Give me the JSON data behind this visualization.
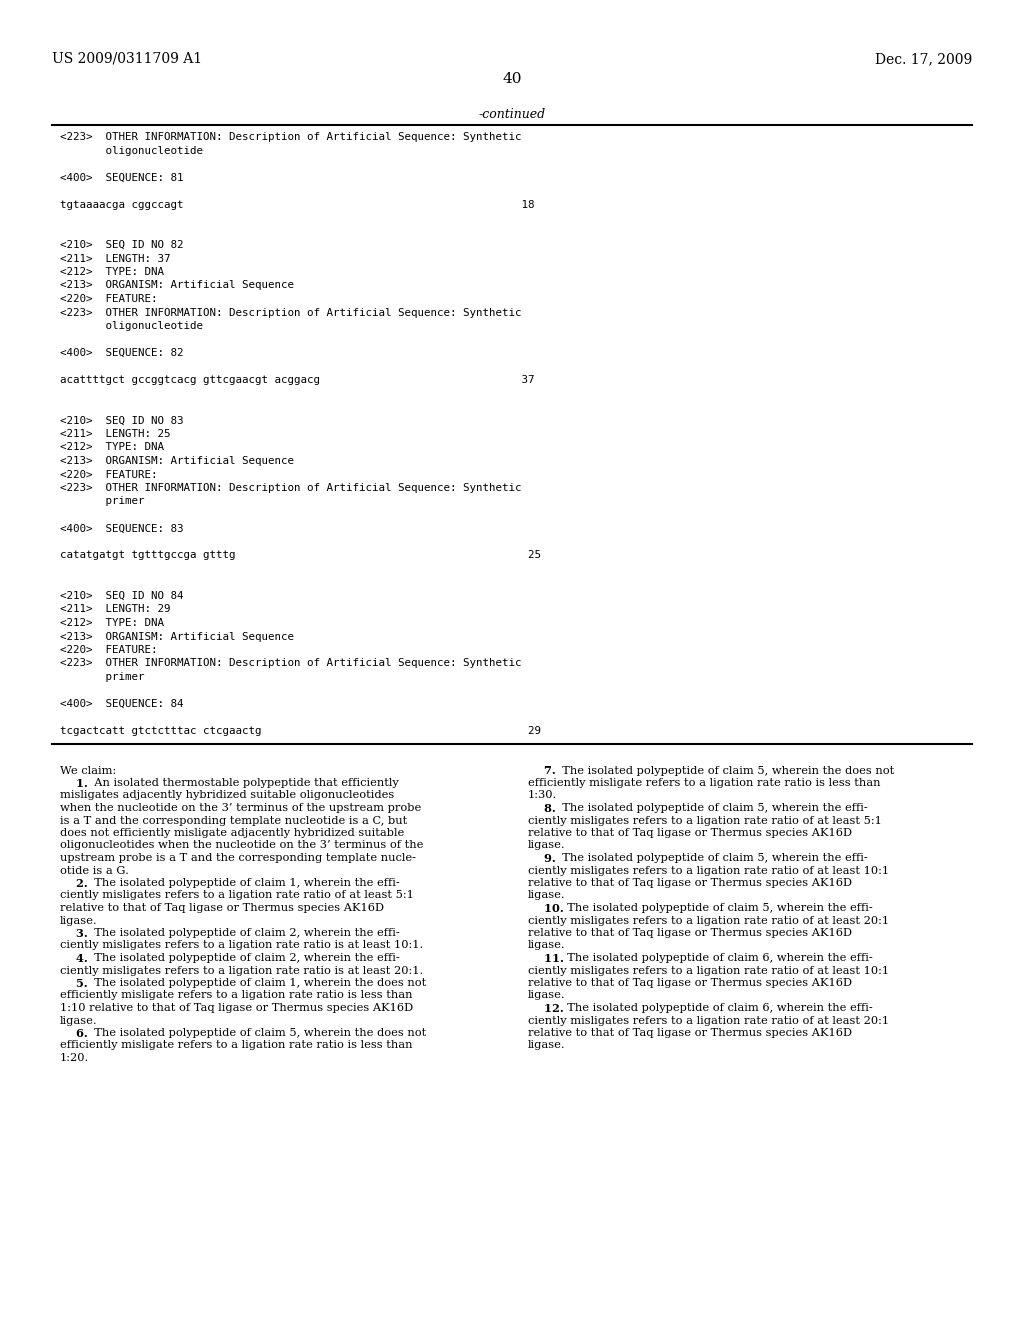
{
  "background_color": "#ffffff",
  "header_left": "US 2009/0311709 A1",
  "header_right": "Dec. 17, 2009",
  "page_number": "40",
  "continued_label": "-continued",
  "seq_block": [
    "<223>  OTHER INFORMATION: Description of Artificial Sequence: Synthetic",
    "       oligonucleotide",
    "",
    "<400>  SEQUENCE: 81",
    "",
    "tgtaaaacga cggccagt                                                    18",
    "",
    "",
    "<210>  SEQ ID NO 82",
    "<211>  LENGTH: 37",
    "<212>  TYPE: DNA",
    "<213>  ORGANISM: Artificial Sequence",
    "<220>  FEATURE:",
    "<223>  OTHER INFORMATION: Description of Artificial Sequence: Synthetic",
    "       oligonucleotide",
    "",
    "<400>  SEQUENCE: 82",
    "",
    "acattttgct gccggtcacg gttcgaacgt acggacg                               37",
    "",
    "",
    "<210>  SEQ ID NO 83",
    "<211>  LENGTH: 25",
    "<212>  TYPE: DNA",
    "<213>  ORGANISM: Artificial Sequence",
    "<220>  FEATURE:",
    "<223>  OTHER INFORMATION: Description of Artificial Sequence: Synthetic",
    "       primer",
    "",
    "<400>  SEQUENCE: 83",
    "",
    "catatgatgt tgtttgccga gtttg                                             25",
    "",
    "",
    "<210>  SEQ ID NO 84",
    "<211>  LENGTH: 29",
    "<212>  TYPE: DNA",
    "<213>  ORGANISM: Artificial Sequence",
    "<220>  FEATURE:",
    "<223>  OTHER INFORMATION: Description of Artificial Sequence: Synthetic",
    "       primer",
    "",
    "<400>  SEQUENCE: 84",
    "",
    "tcgactcatt gtctctttac ctcgaactg                                         29"
  ],
  "claims_left": [
    {
      "text": "We claim:",
      "indent": false,
      "bold_prefix": ""
    },
    {
      "text": "    1.  An isolated thermostable polypeptide that efficiently",
      "indent": false,
      "bold_prefix": "1"
    },
    {
      "text": "misligates adjacently hybridized suitable oligonucleotides",
      "indent": false,
      "bold_prefix": ""
    },
    {
      "text": "when the nucleotide on the 3’ terminus of the upstream probe",
      "indent": false,
      "bold_prefix": ""
    },
    {
      "text": "is a T and the corresponding template nucleotide is a C, but",
      "indent": false,
      "bold_prefix": ""
    },
    {
      "text": "does not efficiently misligate adjacently hybridized suitable",
      "indent": false,
      "bold_prefix": ""
    },
    {
      "text": "oligonucleotides when the nucleotide on the 3’ terminus of the",
      "indent": false,
      "bold_prefix": ""
    },
    {
      "text": "upstream probe is a T and the corresponding template nucle-",
      "indent": false,
      "bold_prefix": ""
    },
    {
      "text": "otide is a G.",
      "indent": false,
      "bold_prefix": ""
    },
    {
      "text": "    2.  The isolated polypeptide of claim 1, wherein the effi-",
      "indent": false,
      "bold_prefix": "2"
    },
    {
      "text": "ciently misligates refers to a ligation rate ratio of at least 5:1",
      "indent": false,
      "bold_prefix": ""
    },
    {
      "text": "relative to that of Taq ligase or Thermus species AK16D",
      "indent": false,
      "bold_prefix": ""
    },
    {
      "text": "ligase.",
      "indent": false,
      "bold_prefix": ""
    },
    {
      "text": "    3.  The isolated polypeptide of claim 2, wherein the effi-",
      "indent": false,
      "bold_prefix": "3"
    },
    {
      "text": "ciently misligates refers to a ligation rate ratio is at least 10:1.",
      "indent": false,
      "bold_prefix": ""
    },
    {
      "text": "    4.  The isolated polypeptide of claim 2, wherein the effi-",
      "indent": false,
      "bold_prefix": "4"
    },
    {
      "text": "ciently misligates refers to a ligation rate ratio is at least 20:1.",
      "indent": false,
      "bold_prefix": ""
    },
    {
      "text": "    5.  The isolated polypeptide of claim 1, wherein the does not",
      "indent": false,
      "bold_prefix": "5"
    },
    {
      "text": "efficiently misligate refers to a ligation rate ratio is less than",
      "indent": false,
      "bold_prefix": ""
    },
    {
      "text": "1:10 relative to that of Taq ligase or Thermus species AK16D",
      "indent": false,
      "bold_prefix": ""
    },
    {
      "text": "ligase.",
      "indent": false,
      "bold_prefix": ""
    },
    {
      "text": "    6.  The isolated polypeptide of claim 5, wherein the does not",
      "indent": false,
      "bold_prefix": "6"
    },
    {
      "text": "efficiently misligate refers to a ligation rate ratio is less than",
      "indent": false,
      "bold_prefix": ""
    },
    {
      "text": "1:20.",
      "indent": false,
      "bold_prefix": ""
    }
  ],
  "claims_right": [
    {
      "text": "    7.  The isolated polypeptide of claim 5, wherein the does not",
      "bold_prefix": "7"
    },
    {
      "text": "efficiently misligate refers to a ligation rate ratio is less than",
      "bold_prefix": ""
    },
    {
      "text": "1:30.",
      "bold_prefix": ""
    },
    {
      "text": "    8.  The isolated polypeptide of claim 5, wherein the effi-",
      "bold_prefix": "8"
    },
    {
      "text": "ciently misligates refers to a ligation rate ratio of at least 5:1",
      "bold_prefix": ""
    },
    {
      "text": "relative to that of Taq ligase or Thermus species AK16D",
      "bold_prefix": ""
    },
    {
      "text": "ligase.",
      "bold_prefix": ""
    },
    {
      "text": "    9.  The isolated polypeptide of claim 5, wherein the effi-",
      "bold_prefix": "9"
    },
    {
      "text": "ciently misligates refers to a ligation rate ratio of at least 10:1",
      "bold_prefix": ""
    },
    {
      "text": "relative to that of Taq ligase or Thermus species AK16D",
      "bold_prefix": ""
    },
    {
      "text": "ligase.",
      "bold_prefix": ""
    },
    {
      "text": "    10.  The isolated polypeptide of claim 5, wherein the effi-",
      "bold_prefix": "10"
    },
    {
      "text": "ciently misligates refers to a ligation rate ratio of at least 20:1",
      "bold_prefix": ""
    },
    {
      "text": "relative to that of Taq ligase or Thermus species AK16D",
      "bold_prefix": ""
    },
    {
      "text": "ligase.",
      "bold_prefix": ""
    },
    {
      "text": "    11.  The isolated polypeptide of claim 6, wherein the effi-",
      "bold_prefix": "11"
    },
    {
      "text": "ciently misligates refers to a ligation rate ratio of at least 10:1",
      "bold_prefix": ""
    },
    {
      "text": "relative to that of Taq ligase or Thermus species AK16D",
      "bold_prefix": ""
    },
    {
      "text": "ligase.",
      "bold_prefix": ""
    },
    {
      "text": "    12.  The isolated polypeptide of claim 6, wherein the effi-",
      "bold_prefix": "12"
    },
    {
      "text": "ciently misligates refers to a ligation rate ratio of at least 20:1",
      "bold_prefix": ""
    },
    {
      "text": "relative to that of Taq ligase or Thermus species AK16D",
      "bold_prefix": ""
    },
    {
      "text": "ligase.",
      "bold_prefix": ""
    }
  ]
}
